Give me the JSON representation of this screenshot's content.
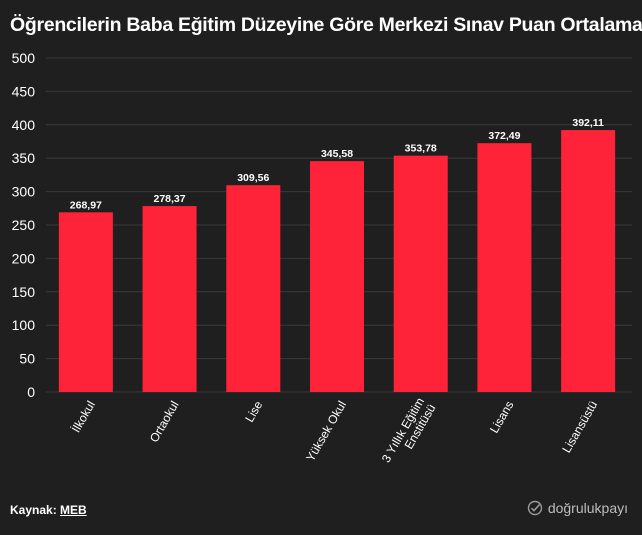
{
  "title": "Öğrencilerin Baba Eğitim Düzeyine Göre Merkezi Sınav Puan Ortalaması",
  "source": {
    "label": "Kaynak:",
    "link": "MEB"
  },
  "brand": "doğrulukpayı",
  "colors": {
    "background": "#1f1f1f",
    "bar": "#ff2339",
    "grid": "#3a3a3a",
    "text": "#ffffff"
  },
  "chart_data": {
    "type": "bar",
    "categories": [
      "İlkokul",
      "Ortaokul",
      "Lise",
      "Yüksek Okul",
      "3 Yıllık Eğitim Enstitüsü",
      "Lisans",
      "Lisansüstü"
    ],
    "category_lines": [
      [
        "İlkokul"
      ],
      [
        "Ortaokul"
      ],
      [
        "Lise"
      ],
      [
        "Yüksek Okul"
      ],
      [
        "3 Yıllık Eğitim",
        "Enstitüsü"
      ],
      [
        "Lisans"
      ],
      [
        "Lisansüstü"
      ]
    ],
    "values": [
      268.97,
      278.37,
      309.56,
      345.58,
      353.78,
      372.49,
      392.11
    ],
    "value_labels": [
      "268,97",
      "278,37",
      "309,56",
      "345,58",
      "353,78",
      "372,49",
      "392,11"
    ],
    "ylim": [
      0,
      500
    ],
    "yticks": [
      0,
      50,
      100,
      150,
      200,
      250,
      300,
      350,
      400,
      450,
      500
    ],
    "grid": true,
    "legend": "none",
    "xlabel": "",
    "ylabel": ""
  }
}
